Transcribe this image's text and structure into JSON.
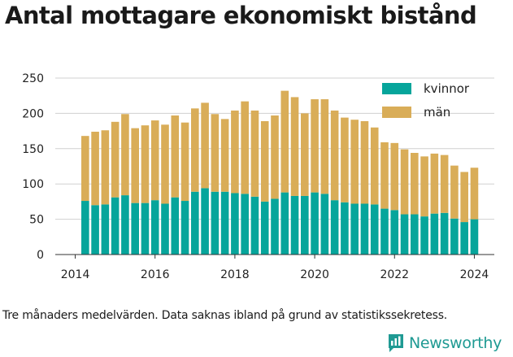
{
  "header": {
    "title": "Antal mottagare ekonomiskt bistånd"
  },
  "footer": {
    "note": "Tre månaders medelvärden. Data saknas ibland på grund av statistikssekretess.",
    "brand": "Newsworthy"
  },
  "colors": {
    "kvinnor": "#06a59b",
    "man": "#d9ad58",
    "grid": "#d0d0d0",
    "brand": "#1f9a93"
  },
  "chart_data": {
    "type": "bar",
    "stacked": true,
    "title": "Antal mottagare ekonomiskt bistånd",
    "x_ticks": [
      "2014",
      "2016",
      "2018",
      "2020",
      "2022",
      "2024"
    ],
    "y_ticks": [
      "0",
      "50",
      "100",
      "150",
      "200",
      "250"
    ],
    "xlim": [
      2013.5,
      2024.5
    ],
    "ylim": [
      0,
      250
    ],
    "grid": true,
    "legend_position": "top-right",
    "x": [
      2014.25,
      2014.5,
      2014.75,
      2015.0,
      2015.25,
      2015.5,
      2015.75,
      2016.0,
      2016.25,
      2016.5,
      2016.75,
      2017.0,
      2017.25,
      2017.5,
      2017.75,
      2018.0,
      2018.25,
      2018.5,
      2018.75,
      2019.0,
      2019.25,
      2019.5,
      2019.75,
      2020.0,
      2020.25,
      2020.5,
      2020.75,
      2021.0,
      2021.25,
      2021.5,
      2021.75,
      2022.0,
      2022.25,
      2022.5,
      2022.75,
      2023.0,
      2023.25,
      2023.5,
      2023.75,
      2024.0
    ],
    "series": [
      {
        "name": "kvinnor",
        "values": [
          76,
          70,
          71,
          81,
          84,
          73,
          73,
          77,
          72,
          81,
          76,
          89,
          94,
          89,
          89,
          87,
          86,
          82,
          75,
          79,
          88,
          83,
          83,
          88,
          86,
          77,
          74,
          72,
          72,
          71,
          65,
          63,
          57,
          57,
          54,
          58,
          59,
          51,
          46,
          50
        ]
      },
      {
        "name": "män",
        "values": [
          92,
          104,
          105,
          107,
          115,
          106,
          110,
          113,
          112,
          116,
          111,
          118,
          121,
          110,
          103,
          117,
          131,
          122,
          114,
          118,
          144,
          140,
          117,
          132,
          134,
          127,
          120,
          119,
          117,
          109,
          94,
          95,
          92,
          87,
          85,
          85,
          82,
          75,
          71,
          73
        ]
      }
    ]
  }
}
